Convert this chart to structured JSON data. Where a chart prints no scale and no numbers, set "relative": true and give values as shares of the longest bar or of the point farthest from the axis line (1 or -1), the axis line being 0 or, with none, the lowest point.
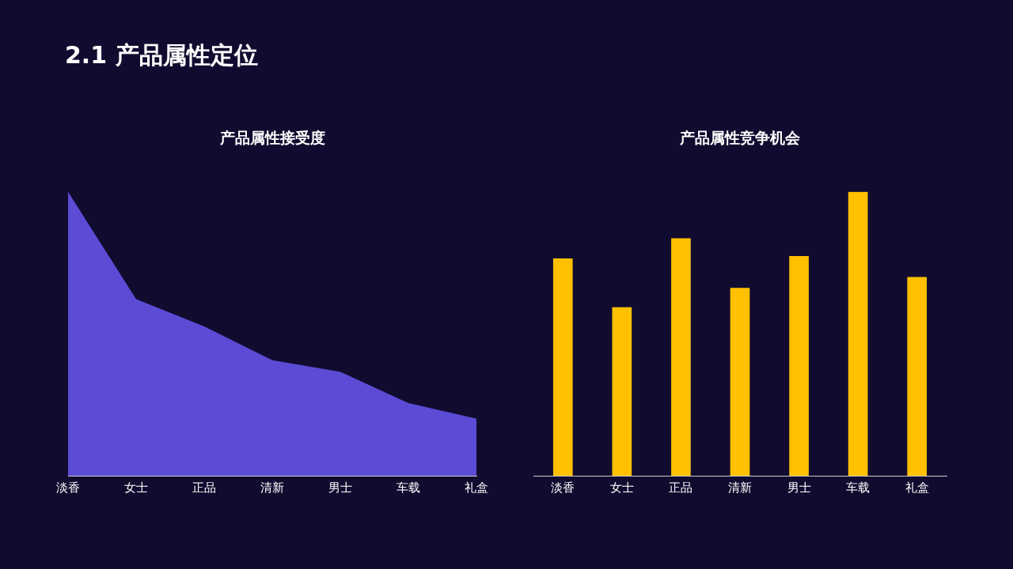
{
  "chart_data": [
    {
      "type": "area",
      "title": "产品属性接受度",
      "relative": true,
      "annotations": [
        "2.1 产品属性定位"
      ],
      "categories": [
        "淡香",
        "女士",
        "正品",
        "清新",
        "男士",
        "车载",
        "礼盒"
      ],
      "series": [
        {
          "color": "#5b4bd5",
          "values": [
            1,
            0.622,
            0.526,
            0.407,
            0.366,
            0.256,
            0.201
          ]
        }
      ],
      "grid": false,
      "legend": false
    },
    {
      "type": "bar",
      "title": "产品属性竞争机会",
      "relative": true,
      "categories": [
        "淡香",
        "女士",
        "正品",
        "清新",
        "男士",
        "车载",
        "礼盒"
      ],
      "series": [
        {
          "color": "#ffc000",
          "values": [
            0.765,
            0.593,
            0.836,
            0.661,
            0.773,
            1,
            0.699
          ]
        }
      ],
      "grid": false,
      "legend": false
    }
  ]
}
